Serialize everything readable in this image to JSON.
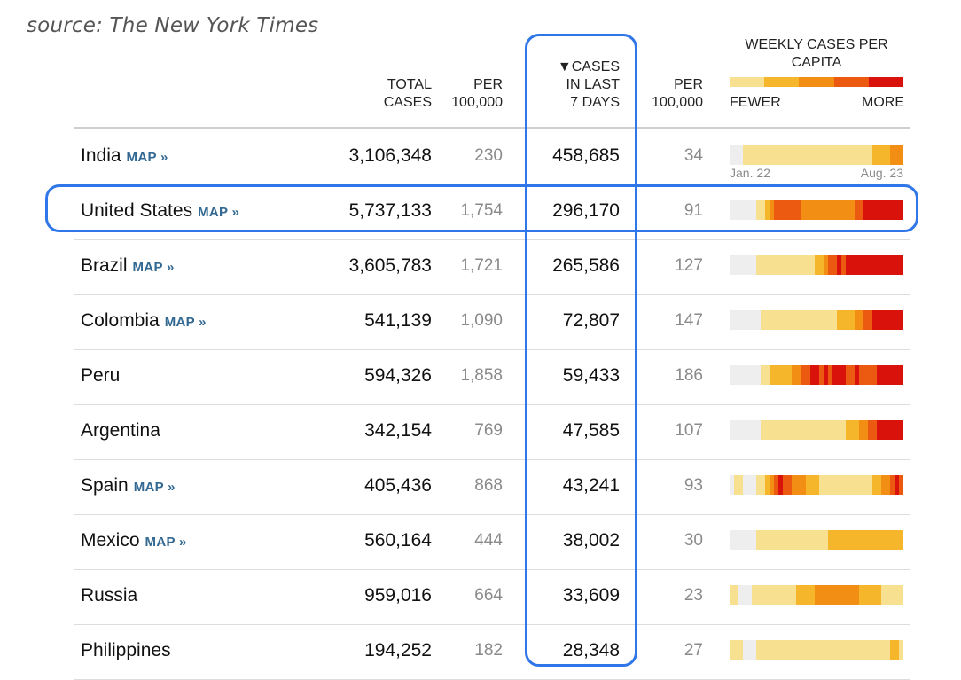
{
  "source": "source: The New York Times",
  "header": {
    "total": "TOTAL CASES",
    "per1": "PER 100,000",
    "cases": "▼CASES IN LAST 7 DAYS",
    "per2": "PER 100,000",
    "weekly": "WEEKLY CASES PER CAPITA",
    "fewer": "FEWER",
    "more": "MORE"
  },
  "colors": {
    "scale": [
      "#f7e08f",
      "#f5b62c",
      "#f38e14",
      "#eb5a10",
      "#d9120b"
    ],
    "none": "#eeeeee",
    "highlight": "#2f76e8",
    "link": "#326891"
  },
  "map_label": "MAP »",
  "date_start": "Jan. 22",
  "date_end": "Aug. 23",
  "rows": [
    {
      "name": "India",
      "map": true,
      "total": "3,106,348",
      "per100k": "230",
      "last7": "458,685",
      "per100k7": "34",
      "spark": [
        0,
        0,
        0,
        1,
        1,
        1,
        1,
        1,
        1,
        1,
        1,
        1,
        1,
        1,
        1,
        1,
        1,
        1,
        1,
        1,
        1,
        1,
        1,
        1,
        1,
        1,
        1,
        1,
        1,
        1,
        1,
        1,
        2,
        2,
        2,
        2,
        3,
        3,
        3
      ]
    },
    {
      "name": "United States",
      "map": true,
      "total": "5,737,133",
      "per100k": "1,754",
      "last7": "296,170",
      "per100k7": "91",
      "spark": [
        0,
        0,
        0,
        0,
        0,
        0,
        1,
        1,
        2,
        3,
        4,
        4,
        4,
        4,
        4,
        4,
        3,
        3,
        3,
        3,
        3,
        3,
        3,
        3,
        3,
        3,
        3,
        3,
        4,
        4,
        5,
        5,
        5,
        5,
        5,
        5,
        5,
        5,
        5
      ]
    },
    {
      "name": "Brazil",
      "map": true,
      "total": "3,605,783",
      "per100k": "1,721",
      "last7": "265,586",
      "per100k7": "127",
      "spark": [
        0,
        0,
        0,
        0,
        0,
        0,
        1,
        1,
        1,
        1,
        1,
        1,
        1,
        1,
        1,
        1,
        1,
        1,
        1,
        2,
        2,
        3,
        4,
        4,
        5,
        4,
        5,
        5,
        5,
        5,
        5,
        5,
        5,
        5,
        5,
        5,
        5,
        5,
        5
      ]
    },
    {
      "name": "Colombia",
      "map": true,
      "total": "541,139",
      "per100k": "1,090",
      "last7": "72,807",
      "per100k7": "147",
      "spark": [
        0,
        0,
        0,
        0,
        0,
        0,
        0,
        1,
        1,
        1,
        1,
        1,
        1,
        1,
        1,
        1,
        1,
        1,
        1,
        1,
        1,
        1,
        1,
        1,
        2,
        2,
        2,
        2,
        3,
        3,
        4,
        4,
        5,
        5,
        5,
        5,
        5,
        5,
        5
      ]
    },
    {
      "name": "Peru",
      "map": false,
      "total": "594,326",
      "per100k": "1,858",
      "last7": "59,433",
      "per100k7": "186",
      "spark": [
        0,
        0,
        0,
        0,
        0,
        0,
        0,
        1,
        1,
        2,
        2,
        2,
        2,
        2,
        3,
        3,
        4,
        4,
        5,
        5,
        4,
        5,
        4,
        5,
        5,
        5,
        4,
        4,
        5,
        4,
        4,
        4,
        4,
        5,
        5,
        5,
        5,
        5,
        5
      ]
    },
    {
      "name": "Argentina",
      "map": false,
      "total": "342,154",
      "per100k": "769",
      "last7": "47,585",
      "per100k7": "107",
      "spark": [
        0,
        0,
        0,
        0,
        0,
        0,
        0,
        1,
        1,
        1,
        1,
        1,
        1,
        1,
        1,
        1,
        1,
        1,
        1,
        1,
        1,
        1,
        1,
        1,
        1,
        1,
        2,
        2,
        2,
        3,
        3,
        4,
        4,
        5,
        5,
        5,
        5,
        5,
        5
      ]
    },
    {
      "name": "Spain",
      "map": true,
      "total": "405,436",
      "per100k": "868",
      "last7": "43,241",
      "per100k7": "93",
      "spark": [
        0,
        1,
        1,
        0,
        0,
        0,
        1,
        1,
        2,
        3,
        4,
        5,
        4,
        4,
        3,
        3,
        3,
        2,
        2,
        2,
        1,
        1,
        1,
        1,
        1,
        1,
        1,
        1,
        1,
        1,
        1,
        1,
        2,
        2,
        3,
        3,
        4,
        5,
        4
      ]
    },
    {
      "name": "Mexico",
      "map": true,
      "total": "560,164",
      "per100k": "444",
      "last7": "38,002",
      "per100k7": "30",
      "spark": [
        0,
        0,
        0,
        0,
        0,
        0,
        1,
        1,
        1,
        1,
        1,
        1,
        1,
        1,
        1,
        1,
        1,
        1,
        1,
        1,
        1,
        1,
        2,
        2,
        2,
        2,
        2,
        2,
        2,
        2,
        2,
        2,
        2,
        2,
        2,
        2,
        2,
        2,
        2
      ]
    },
    {
      "name": "Russia",
      "map": false,
      "total": "959,016",
      "per100k": "664",
      "last7": "33,609",
      "per100k7": "23",
      "spark": [
        1,
        1,
        0,
        0,
        0,
        1,
        1,
        1,
        1,
        1,
        1,
        1,
        1,
        1,
        1,
        2,
        2,
        2,
        2,
        3,
        3,
        3,
        3,
        3,
        3,
        3,
        3,
        3,
        3,
        2,
        2,
        2,
        2,
        2,
        1,
        1,
        1,
        1,
        1
      ]
    },
    {
      "name": "Philippines",
      "map": false,
      "total": "194,252",
      "per100k": "182",
      "last7": "28,348",
      "per100k7": "27",
      "spark": [
        1,
        1,
        1,
        0,
        0,
        0,
        1,
        1,
        1,
        1,
        1,
        1,
        1,
        1,
        1,
        1,
        1,
        1,
        1,
        1,
        1,
        1,
        1,
        1,
        1,
        1,
        1,
        1,
        1,
        1,
        1,
        1,
        1,
        1,
        1,
        1,
        2,
        2,
        1
      ]
    }
  ]
}
